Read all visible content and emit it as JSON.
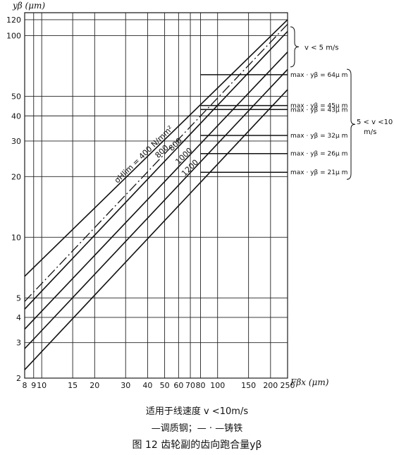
{
  "chart_data": {
    "type": "line",
    "y_label": "yβ (μm)",
    "x_label": "Fβx (μm)",
    "x_scale": "log",
    "y_scale": "log",
    "xlim": [
      8,
      250
    ],
    "ylim": [
      2,
      130
    ],
    "x_ticks": [
      8,
      9,
      10,
      15,
      20,
      30,
      40,
      50,
      60,
      70,
      80,
      100,
      150,
      200,
      250
    ],
    "y_ticks": [
      2,
      3,
      4,
      5,
      10,
      20,
      30,
      40,
      50,
      100,
      120
    ],
    "series": [
      {
        "name": "σHlim = 400 N/mm²",
        "style": "solid",
        "x": [
          8,
          250
        ],
        "y": [
          6.4,
          120
        ]
      },
      {
        "name": "800",
        "style": "dashdot",
        "x": [
          8,
          250
        ],
        "y": [
          4.8,
          114
        ]
      },
      {
        "name": "800",
        "style": "solid",
        "x": [
          8,
          250
        ],
        "y": [
          4.4,
          105
        ]
      },
      {
        "name": "1000",
        "style": "solid",
        "x": [
          8,
          250
        ],
        "y": [
          3.5,
          83
        ]
      },
      {
        "name": "1200",
        "style": "solid",
        "x": [
          8,
          250
        ],
        "y": [
          2.8,
          68
        ]
      },
      {
        "name": "",
        "style": "solid",
        "x": [
          8,
          250
        ],
        "y": [
          2.2,
          54
        ]
      }
    ],
    "caps": [
      {
        "label": "max · yβ = 64μ m",
        "y": 64,
        "x_from": 80
      },
      {
        "label": "max · yβ = 45μ m",
        "y": 45,
        "x_from": 80
      },
      {
        "label": "max · yβ = 43μ m",
        "y": 43,
        "x_from": 80
      },
      {
        "label": "max · yβ = 32μ m",
        "y": 32,
        "x_from": 80
      },
      {
        "label": "max · yβ = 26μ m",
        "y": 26,
        "x_from": 80
      },
      {
        "label": "max · yβ = 21μ m",
        "y": 21,
        "x_from": 80
      }
    ],
    "ranges": [
      {
        "label": "v < 5 m/s",
        "y_from": 70,
        "y_to": 130
      },
      {
        "label": "5 < v <10 m/s",
        "y_from": 20,
        "y_to": 66
      }
    ],
    "legend": "—调质钢；— · —铸铁"
  },
  "captions": {
    "speed_note": "适用于线速度 v <10m/s",
    "legend": "—调质钢；— · —铸铁",
    "figure_title": "图 12  齿轮副的齿向跑合量yβ"
  }
}
